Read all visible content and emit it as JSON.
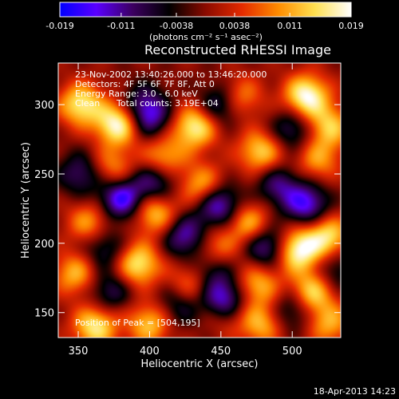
{
  "colorbar": {
    "min": -0.019,
    "max": 0.019,
    "ticks": [
      "-0.019",
      "-0.011",
      "-0.0038",
      "0.0038",
      "0.011",
      "0.019"
    ],
    "tick_values": [
      -0.019,
      -0.011,
      -0.0038,
      0.0038,
      0.011,
      0.019
    ],
    "units": "(photons cm⁻² s⁻¹ asec⁻²)",
    "colormap": [
      "#0000ff",
      "#5a00ff",
      "#3c0060",
      "#000000",
      "#8a0a00",
      "#e42a00",
      "#ff8c00",
      "#ffe050",
      "#ffffff"
    ]
  },
  "chart_data": {
    "type": "heatmap",
    "title": "Reconstructed RHESSI Image",
    "xlabel": "Heliocentric X (arcsec)",
    "ylabel": "Heliocentric Y (arcsec)",
    "xlim": [
      336,
      534
    ],
    "ylim": [
      132,
      330
    ],
    "xticks": [
      350,
      400,
      450,
      500
    ],
    "yticks": [
      150,
      200,
      250,
      300
    ],
    "annotations": {
      "time": "23-Nov-2002 13:40:26.000 to 13:46:20.000",
      "detectors": "Detectors: 4F 5F 6F 7F 8F, Att 0",
      "energy": "Energy Range: 3.0 - 6.0 keV",
      "method": "Clean",
      "counts": "Total counts: 3.19E+04",
      "peak": "Position of Peak = [504,195]"
    },
    "peak": [
      504,
      195
    ],
    "blobs": [
      {
        "x": 352,
        "y": 300,
        "v": 0.016
      },
      {
        "x": 378,
        "y": 286,
        "v": 0.019
      },
      {
        "x": 432,
        "y": 284,
        "v": 0.017
      },
      {
        "x": 510,
        "y": 306,
        "v": 0.019
      },
      {
        "x": 526,
        "y": 284,
        "v": 0.013
      },
      {
        "x": 463,
        "y": 305,
        "v": 0.011
      },
      {
        "x": 374,
        "y": 254,
        "v": 0.01
      },
      {
        "x": 410,
        "y": 262,
        "v": 0.012
      },
      {
        "x": 478,
        "y": 266,
        "v": 0.014
      },
      {
        "x": 518,
        "y": 260,
        "v": 0.01
      },
      {
        "x": 437,
        "y": 241,
        "v": 0.013
      },
      {
        "x": 358,
        "y": 215,
        "v": 0.011
      },
      {
        "x": 404,
        "y": 222,
        "v": 0.014
      },
      {
        "x": 470,
        "y": 214,
        "v": 0.013
      },
      {
        "x": 504,
        "y": 195,
        "v": 0.019
      },
      {
        "x": 525,
        "y": 205,
        "v": 0.015
      },
      {
        "x": 446,
        "y": 196,
        "v": 0.01
      },
      {
        "x": 348,
        "y": 178,
        "v": 0.012
      },
      {
        "x": 392,
        "y": 185,
        "v": 0.016
      },
      {
        "x": 430,
        "y": 172,
        "v": 0.011
      },
      {
        "x": 476,
        "y": 170,
        "v": 0.012
      },
      {
        "x": 514,
        "y": 165,
        "v": 0.015
      },
      {
        "x": 362,
        "y": 140,
        "v": 0.016
      },
      {
        "x": 400,
        "y": 142,
        "v": 0.013
      },
      {
        "x": 452,
        "y": 150,
        "v": 0.009
      },
      {
        "x": 478,
        "y": 142,
        "v": 0.012
      },
      {
        "x": 526,
        "y": 142,
        "v": 0.011
      },
      {
        "x": 395,
        "y": 300,
        "v": -0.008
      },
      {
        "x": 450,
        "y": 300,
        "v": -0.012
      },
      {
        "x": 500,
        "y": 282,
        "v": -0.01
      },
      {
        "x": 400,
        "y": 290,
        "v": -0.011
      },
      {
        "x": 380,
        "y": 232,
        "v": -0.017
      },
      {
        "x": 404,
        "y": 244,
        "v": -0.012
      },
      {
        "x": 448,
        "y": 228,
        "v": -0.016
      },
      {
        "x": 490,
        "y": 242,
        "v": -0.01
      },
      {
        "x": 510,
        "y": 228,
        "v": -0.015
      },
      {
        "x": 425,
        "y": 205,
        "v": -0.013
      },
      {
        "x": 482,
        "y": 198,
        "v": -0.014
      },
      {
        "x": 368,
        "y": 196,
        "v": -0.009
      },
      {
        "x": 352,
        "y": 250,
        "v": -0.01
      },
      {
        "x": 442,
        "y": 180,
        "v": -0.011
      },
      {
        "x": 452,
        "y": 158,
        "v": -0.019
      },
      {
        "x": 372,
        "y": 165,
        "v": -0.009
      },
      {
        "x": 500,
        "y": 152,
        "v": -0.009
      },
      {
        "x": 420,
        "y": 155,
        "v": -0.008
      },
      {
        "x": 530,
        "y": 180,
        "v": -0.008
      }
    ]
  },
  "footer": {
    "timestamp": "18-Apr-2013 14:23"
  }
}
